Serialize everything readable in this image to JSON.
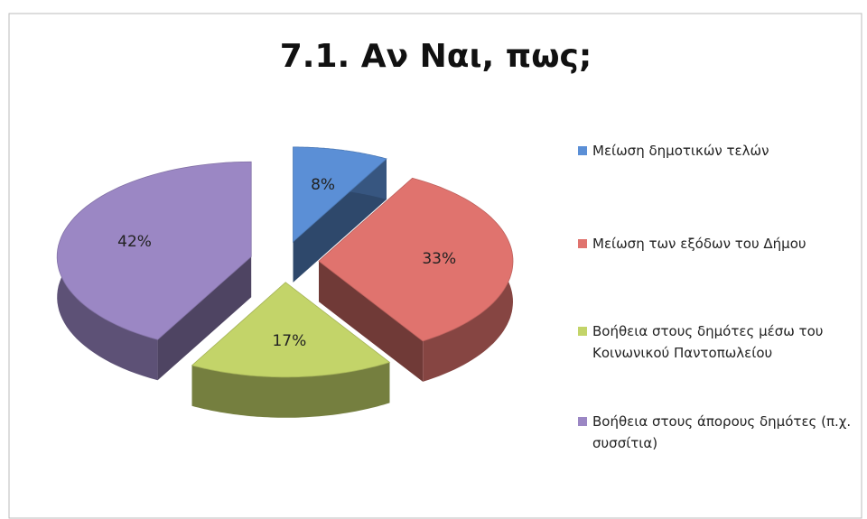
{
  "chart_data": {
    "type": "pie3d",
    "title": "7.1. Αν Ναι, πως;",
    "categories": [
      "Μείωση δημοτικών τελών",
      "Μείωση των εξόδων του Δήμου",
      "Βοήθεια στους δημότες μέσω του Κοινωνικού Παντοπωλείου",
      "Βοήθεια στους άπορους δημότες (π.χ. συσσίτια)"
    ],
    "values": [
      8,
      33,
      17,
      42
    ],
    "value_labels": [
      "8%",
      "33%",
      "17%",
      "42%"
    ],
    "colors": [
      "#5b8fd6",
      "#e0736e",
      "#c3d469",
      "#9b87c4"
    ],
    "legend": "right"
  }
}
